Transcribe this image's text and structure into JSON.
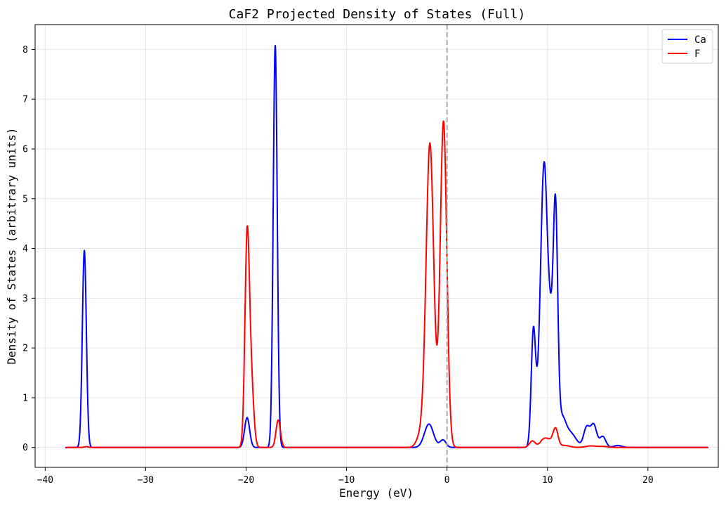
{
  "chart_data": {
    "type": "line",
    "title": "CaF2 Projected Density of States (Full)",
    "xlabel": "Energy (eV)",
    "ylabel": "Density of States (arbitrary units)",
    "xlim": [
      -41,
      27
    ],
    "ylim": [
      -0.4,
      8.5
    ],
    "xticks": [
      -40,
      -30,
      -20,
      -10,
      0,
      10,
      20
    ],
    "yticks": [
      0,
      1,
      2,
      3,
      4,
      5,
      6,
      7,
      8
    ],
    "grid": true,
    "legend_position": "top-right",
    "fermi_line": {
      "x": 0,
      "style": "dashed",
      "color": "#aaaaaa"
    },
    "x_range": [
      -38,
      26
    ],
    "series": [
      {
        "name": "Ca",
        "color": "#0000ff",
        "peaks": [
          {
            "center": -36.1,
            "height": 3.96,
            "width": 0.2
          },
          {
            "center": -19.9,
            "height": 0.6,
            "width": 0.25
          },
          {
            "center": -17.1,
            "height": 8.08,
            "width": 0.2
          },
          {
            "center": -1.8,
            "height": 0.47,
            "width": 0.45
          },
          {
            "center": -0.4,
            "height": 0.15,
            "width": 0.3
          },
          {
            "center": 8.6,
            "height": 2.32,
            "width": 0.22
          },
          {
            "center": 9.3,
            "height": 1.5,
            "width": 0.3
          },
          {
            "center": 9.7,
            "height": 4.9,
            "width": 0.3
          },
          {
            "center": 10.3,
            "height": 2.1,
            "width": 0.28
          },
          {
            "center": 10.8,
            "height": 4.45,
            "width": 0.22
          },
          {
            "center": 11.4,
            "height": 0.55,
            "width": 0.4
          },
          {
            "center": 12.3,
            "height": 0.28,
            "width": 0.55
          },
          {
            "center": 13.9,
            "height": 0.4,
            "width": 0.3
          },
          {
            "center": 14.6,
            "height": 0.45,
            "width": 0.3
          },
          {
            "center": 15.5,
            "height": 0.22,
            "width": 0.3
          },
          {
            "center": 17.0,
            "height": 0.04,
            "width": 0.4
          }
        ]
      },
      {
        "name": "F",
        "color": "#ff0000",
        "peaks": [
          {
            "center": -35.9,
            "height": 0.015,
            "width": 0.2
          },
          {
            "center": -19.9,
            "height": 4.06,
            "width": 0.22
          },
          {
            "center": -19.5,
            "height": 1.3,
            "width": 0.25
          },
          {
            "center": -16.8,
            "height": 0.55,
            "width": 0.22
          },
          {
            "center": -1.7,
            "height": 6.1,
            "width": 0.38
          },
          {
            "center": -0.35,
            "height": 6.55,
            "width": 0.33
          },
          {
            "center": -2.6,
            "height": 0.25,
            "width": 0.4
          },
          {
            "center": 8.5,
            "height": 0.13,
            "width": 0.3
          },
          {
            "center": 9.6,
            "height": 0.15,
            "width": 0.35
          },
          {
            "center": 10.2,
            "height": 0.12,
            "width": 0.35
          },
          {
            "center": 10.8,
            "height": 0.36,
            "width": 0.25
          },
          {
            "center": 11.7,
            "height": 0.04,
            "width": 0.5
          },
          {
            "center": 14.3,
            "height": 0.03,
            "width": 0.5
          },
          {
            "center": 15.5,
            "height": 0.02,
            "width": 0.5
          }
        ]
      }
    ]
  }
}
